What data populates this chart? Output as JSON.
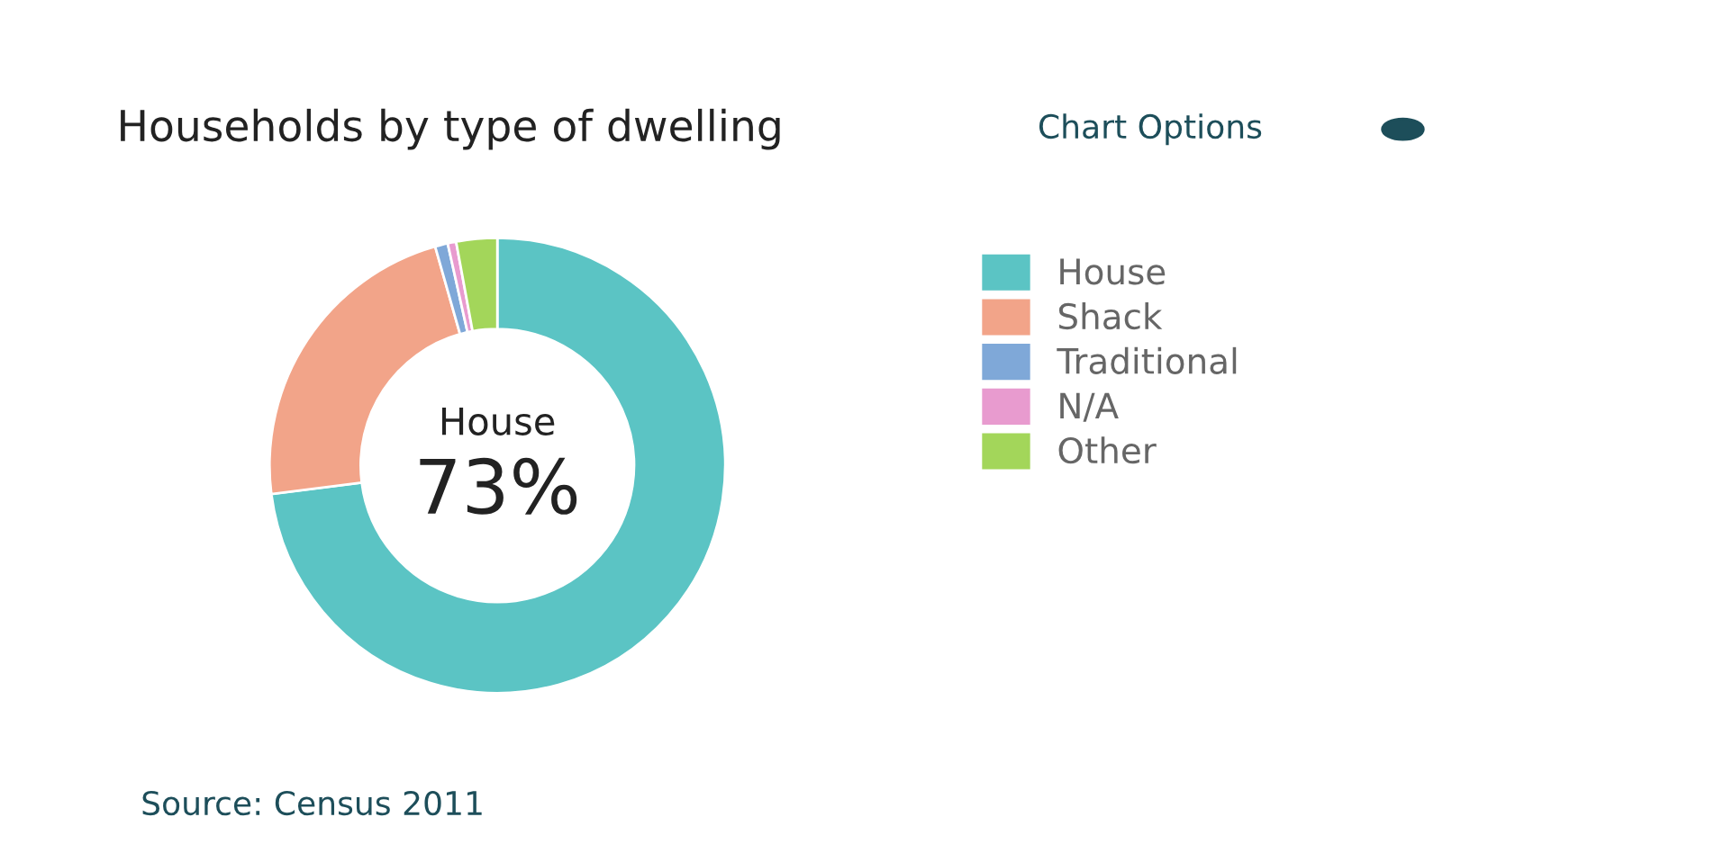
{
  "chart_data": {
    "type": "donut",
    "title": "Households by type of dwelling",
    "categories": [
      "House",
      "Shack",
      "Traditional",
      "N/A",
      "Other"
    ],
    "values": [
      73,
      22.6,
      0.9,
      0.6,
      2.9
    ],
    "colors": [
      "#5bc4c4",
      "#f2a489",
      "#7fa8d8",
      "#e89bcf",
      "#a3d65a"
    ],
    "legend": "right",
    "annotations": [
      "Chart Options",
      "House",
      "73%",
      "Source: Census 2011"
    ]
  }
}
